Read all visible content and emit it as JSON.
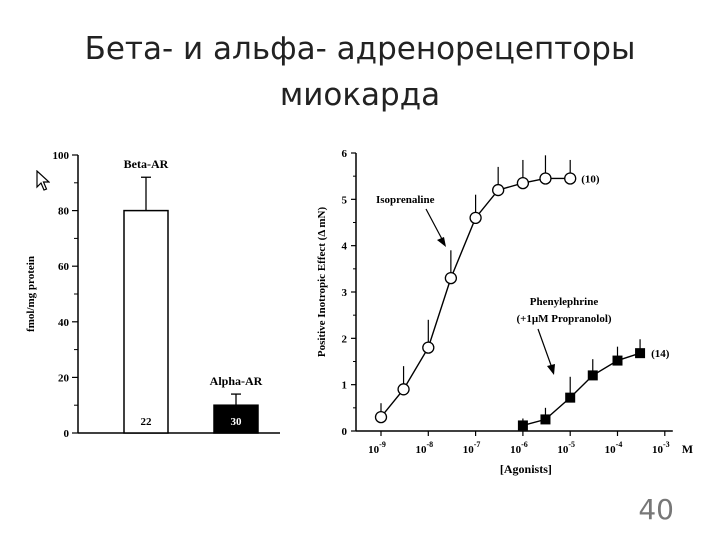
{
  "slide": {
    "title_line1": "Бета- и альфа- адренорецепторы",
    "title_line2": "миокарда",
    "page_number": "40"
  },
  "chart_data": [
    {
      "type": "bar",
      "ylabel": "fmol/mg protein",
      "ylim": [
        0,
        100
      ],
      "yticks": [
        0,
        20,
        40,
        60,
        80,
        100
      ],
      "categories": [
        "Beta-AR",
        "Alpha-AR"
      ],
      "values": [
        80,
        10
      ],
      "errors": [
        12,
        4
      ],
      "n_labels": [
        "22",
        "30"
      ],
      "colors": [
        "#ffffff",
        "#000000"
      ]
    },
    {
      "type": "line",
      "xlabel": "[Agonists]",
      "x_unit": "M",
      "ylabel": "Positive Inotropic Effect (Δ mN)",
      "ylim": [
        0,
        6
      ],
      "yticks": [
        0,
        1,
        2,
        3,
        4,
        5,
        6
      ],
      "xlim": [
        1e-09,
        0.001
      ],
      "x_scale": "log",
      "xtick_labels": [
        {
          "v": 1e-09,
          "base": "10",
          "exp": "-9"
        },
        {
          "v": 1e-08,
          "base": "10",
          "exp": "-8"
        },
        {
          "v": 1e-07,
          "base": "10",
          "exp": "-7"
        },
        {
          "v": 1e-06,
          "base": "10",
          "exp": "-6"
        },
        {
          "v": 1e-05,
          "base": "10",
          "exp": "-5"
        },
        {
          "v": 0.0001,
          "base": "10",
          "exp": "-4"
        },
        {
          "v": 0.001,
          "base": "10",
          "exp": "-3"
        }
      ],
      "series": [
        {
          "name": "Isoprenaline",
          "marker": "open-circle",
          "n_label": "(10)",
          "x": [
            1e-09,
            3e-09,
            1e-08,
            3e-08,
            1e-07,
            3e-07,
            1e-06,
            3e-06,
            1e-05
          ],
          "y": [
            0.3,
            0.9,
            1.8,
            3.3,
            4.6,
            5.2,
            5.35,
            5.45,
            5.45
          ],
          "err": [
            0.3,
            0.5,
            0.6,
            0.6,
            0.5,
            0.5,
            0.5,
            0.5,
            0.4
          ]
        },
        {
          "name": "Phenylephrine",
          "name_line2": "(+1μM Propranolol)",
          "marker": "filled-square",
          "n_label": "(14)",
          "x": [
            1e-06,
            3e-06,
            1e-05,
            3e-05,
            0.0001,
            0.0003
          ],
          "y": [
            0.12,
            0.25,
            0.72,
            1.2,
            1.52,
            1.68
          ],
          "err": [
            0.15,
            0.25,
            0.45,
            0.35,
            0.3,
            0.3
          ]
        }
      ]
    }
  ]
}
